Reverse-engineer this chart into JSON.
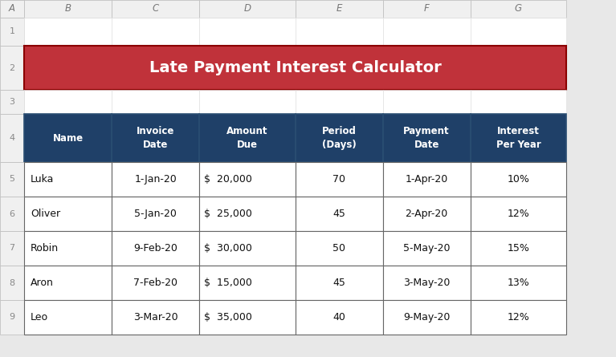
{
  "title": "Late Payment Interest Calculator",
  "title_bg_color": "#C0323A",
  "title_text_color": "#FFFFFF",
  "header_bg_color": "#1F4068",
  "header_text_color": "#FFFFFF",
  "row_bg_color": "#FFFFFF",
  "spreadsheet_bg": "#E8E8E8",
  "cell_bg": "#FFFFFF",
  "row_num_bg": "#F0F0F0",
  "col_letter_bg": "#F0F0F0",
  "col_letters": [
    "A",
    "B",
    "C",
    "D",
    "E",
    "F",
    "G"
  ],
  "row_numbers": [
    "1",
    "2",
    "3",
    "4",
    "5",
    "6",
    "7",
    "8",
    "9"
  ],
  "headers": [
    "Name",
    "Invoice\nDate",
    "Amount\nDue",
    "Period\n(Days)",
    "Payment\nDate",
    "Interest\nPer Year"
  ],
  "rows": [
    [
      "Luka",
      "1-Jan-20",
      "$  20,000",
      "70",
      "1-Apr-20",
      "10%"
    ],
    [
      "Oliver",
      "5-Jan-20",
      "$  25,000",
      "45",
      "2-Apr-20",
      "12%"
    ],
    [
      "Robin",
      "9-Feb-20",
      "$  30,000",
      "50",
      "5-May-20",
      "15%"
    ],
    [
      "Aron",
      "7-Feb-20",
      "$  15,000",
      "45",
      "3-May-20",
      "13%"
    ],
    [
      "Leo",
      "3-Mar-20",
      "$  35,000",
      "40",
      "9-May-20",
      "12%"
    ]
  ],
  "figsize": [
    7.67,
    4.45
  ],
  "dpi": 100
}
